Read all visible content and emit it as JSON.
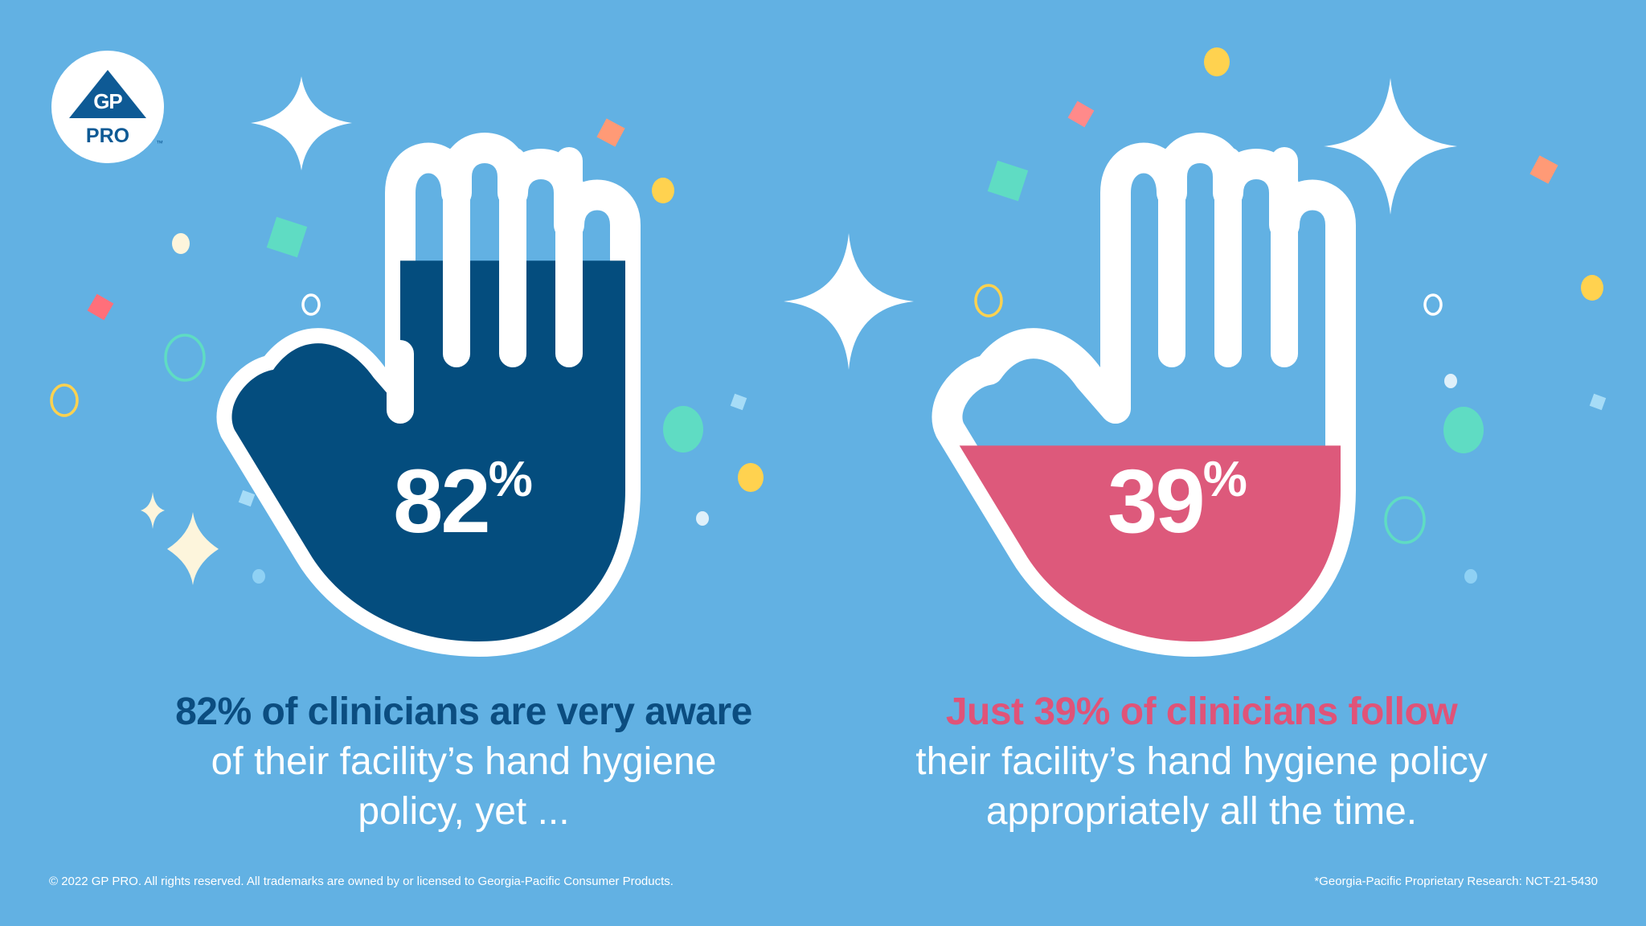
{
  "logo": {
    "top": "GP",
    "bottom": "PRO",
    "tm": "™"
  },
  "stats": [
    {
      "value": 82,
      "number": "82",
      "suffix": "%",
      "fill_level": 0.82,
      "fill_color": "#044d7e",
      "lead": "82% of clinicians are very aware",
      "rest_line1": "of their facility’s hand hygiene",
      "rest_line2": "policy, yet ..."
    },
    {
      "value": 39,
      "number": "39",
      "suffix": "%",
      "fill_level": 0.39,
      "fill_color": "#dd597b",
      "lead": "Just 39% of clinicians follow",
      "rest_line1": "their facility’s hand hygiene policy",
      "rest_line2": "appropriately all the time."
    }
  ],
  "footer": {
    "copyright": "© 2022 GP PRO. All rights reserved. All trademarks are owned by or licensed to Georgia-Pacific Consumer Products.",
    "source": "*Georgia-Pacific Proprietary Research: NCT-21-5430"
  },
  "colors": {
    "background": "#62b1e3",
    "brand_navy": "#0b4d80",
    "accent_pink": "#e05378",
    "white": "#ffffff"
  },
  "icons": [
    "gp-pro-logo",
    "hand-icon",
    "sparkle-icon",
    "confetti"
  ]
}
